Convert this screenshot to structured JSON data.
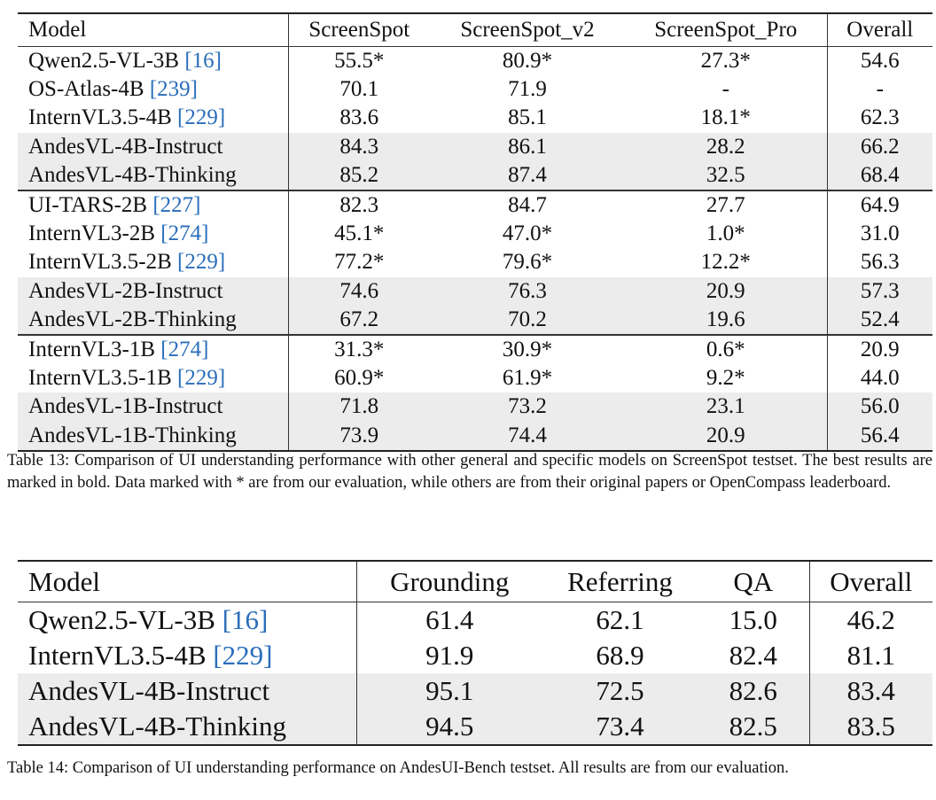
{
  "table13": {
    "headers": [
      "Model",
      "ScreenSpot",
      "ScreenSpot_v2",
      "ScreenSpot_Pro",
      "Overall"
    ],
    "rows": [
      {
        "model": "Qwen2.5-VL-3B",
        "ref": "[16]",
        "cells": [
          {
            "v": "55.5*"
          },
          {
            "v": "80.9*"
          },
          {
            "v": "27.3*"
          },
          {
            "v": "54.6"
          }
        ]
      },
      {
        "model": "OS-Atlas-4B",
        "ref": "[239]",
        "cells": [
          {
            "v": "70.1"
          },
          {
            "v": "71.9"
          },
          {
            "v": "-"
          },
          {
            "v": "-"
          }
        ]
      },
      {
        "model": "InternVL3.5-4B",
        "ref": "[229]",
        "cells": [
          {
            "v": "83.6"
          },
          {
            "v": "85.1"
          },
          {
            "v": "18.1*"
          },
          {
            "v": "62.3"
          }
        ]
      },
      {
        "model": "AndesVL-4B-Instruct",
        "ref": "",
        "shade": true,
        "cells": [
          {
            "v": "84.3"
          },
          {
            "v": "86.1"
          },
          {
            "v": "28.2"
          },
          {
            "v": "66.2"
          }
        ]
      },
      {
        "model": "AndesVL-4B-Thinking",
        "ref": "",
        "shade": true,
        "end": true,
        "cells": [
          {
            "v": "85.2",
            "b": true
          },
          {
            "v": "87.4",
            "b": true
          },
          {
            "v": "32.5",
            "b": true
          },
          {
            "v": "68.4",
            "b": true
          }
        ]
      },
      {
        "model": "UI-TARS-2B",
        "ref": "[227]",
        "cells": [
          {
            "v": "82.3",
            "b": true
          },
          {
            "v": "84.7",
            "b": true
          },
          {
            "v": "27.7",
            "b": true
          },
          {
            "v": "64.9",
            "b": true
          }
        ]
      },
      {
        "model": "InternVL3-2B",
        "ref": "[274]",
        "cells": [
          {
            "v": "45.1*"
          },
          {
            "v": "47.0*"
          },
          {
            "v": "1.0*"
          },
          {
            "v": "31.0"
          }
        ]
      },
      {
        "model": "InternVL3.5-2B",
        "ref": "[229]",
        "cells": [
          {
            "v": "77.2*"
          },
          {
            "v": "79.6*"
          },
          {
            "v": "12.2*"
          },
          {
            "v": "56.3"
          }
        ]
      },
      {
        "model": "AndesVL-2B-Instruct",
        "ref": "",
        "shade": true,
        "cells": [
          {
            "v": "74.6"
          },
          {
            "v": "76.3"
          },
          {
            "v": "20.9"
          },
          {
            "v": "57.3"
          }
        ]
      },
      {
        "model": "AndesVL-2B-Thinking",
        "ref": "",
        "shade": true,
        "end": true,
        "cells": [
          {
            "v": "67.2"
          },
          {
            "v": "70.2"
          },
          {
            "v": "19.6"
          },
          {
            "v": "52.4"
          }
        ]
      },
      {
        "model": "InternVL3-1B",
        "ref": "[274]",
        "cells": [
          {
            "v": "31.3*"
          },
          {
            "v": "30.9*"
          },
          {
            "v": "0.6*"
          },
          {
            "v": "20.9"
          }
        ]
      },
      {
        "model": "InternVL3.5-1B",
        "ref": "[229]",
        "cells": [
          {
            "v": "60.9*"
          },
          {
            "v": "61.9*"
          },
          {
            "v": "9.2*"
          },
          {
            "v": "44.0"
          }
        ]
      },
      {
        "model": "AndesVL-1B-Instruct",
        "ref": "",
        "shade": true,
        "cells": [
          {
            "v": "71.8"
          },
          {
            "v": "73.2"
          },
          {
            "v": "23.1",
            "b": true
          },
          {
            "v": "56.0"
          }
        ]
      },
      {
        "model": "AndesVL-1B-Thinking",
        "ref": "",
        "shade": true,
        "cells": [
          {
            "v": "73.9",
            "b": true
          },
          {
            "v": "74.4",
            "b": true
          },
          {
            "v": "20.9"
          },
          {
            "v": "56.4",
            "b": true
          }
        ]
      }
    ],
    "caption": "Table 13: Comparison of UI understanding performance with other general and specific models on ScreenSpot testset. The best results are marked in bold. Data marked with * are from our evaluation, while others are from their original papers or OpenCompass leaderboard."
  },
  "table14": {
    "headers": [
      "Model",
      "Grounding",
      "Referring",
      "QA",
      "Overall"
    ],
    "rows": [
      {
        "model": "Qwen2.5-VL-3B",
        "ref": "[16]",
        "cells": [
          {
            "v": "61.4"
          },
          {
            "v": "62.1"
          },
          {
            "v": "15.0"
          },
          {
            "v": "46.2"
          }
        ]
      },
      {
        "model": "InternVL3.5-4B",
        "ref": "[229]",
        "cells": [
          {
            "v": "91.9"
          },
          {
            "v": "68.9"
          },
          {
            "v": "82.4"
          },
          {
            "v": "81.1"
          }
        ]
      },
      {
        "model": "AndesVL-4B-Instruct",
        "ref": "",
        "shade": true,
        "cells": [
          {
            "v": "95.1",
            "b": true
          },
          {
            "v": "72.5"
          },
          {
            "v": "82.6",
            "b": true
          },
          {
            "v": "83.4"
          }
        ]
      },
      {
        "model": "AndesVL-4B-Thinking",
        "ref": "",
        "shade": true,
        "cells": [
          {
            "v": "94.5"
          },
          {
            "v": "73.4",
            "b": true
          },
          {
            "v": "82.5"
          },
          {
            "v": "83.5",
            "b": true
          }
        ]
      }
    ],
    "caption": "Table 14: Comparison of UI understanding performance on AndesUI-Bench testset. All results are from our evaluation."
  }
}
